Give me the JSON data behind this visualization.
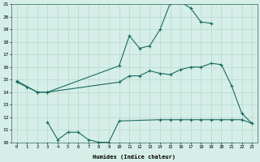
{
  "xlabel": "Humidex (Indice chaleur)",
  "xlim": [
    -0.5,
    23.5
  ],
  "ylim": [
    10,
    21
  ],
  "yticks": [
    10,
    11,
    12,
    13,
    14,
    15,
    16,
    17,
    18,
    19,
    20,
    21
  ],
  "xtick_labels": [
    "0",
    "1",
    "2",
    "3",
    "4",
    "5",
    "6",
    "7",
    "8",
    "9",
    "10",
    "11",
    "12",
    "13",
    "14",
    "15",
    "16",
    "17",
    "18",
    "19",
    "20",
    "21",
    "22",
    "23"
  ],
  "xticks": [
    0,
    1,
    2,
    3,
    4,
    5,
    6,
    7,
    8,
    9,
    10,
    11,
    12,
    13,
    14,
    15,
    16,
    17,
    18,
    19,
    20,
    21,
    22,
    23
  ],
  "bg_color": "#d5eee8",
  "grid_color": "#b8d8cc",
  "line_color": "#1a6b60",
  "line1_x": [
    0,
    1,
    2,
    3,
    10,
    11,
    12,
    13,
    14,
    15,
    16,
    17,
    18,
    19
  ],
  "line1_y": [
    14.8,
    14.4,
    14.0,
    14.0,
    16.1,
    18.5,
    17.5,
    17.7,
    19.0,
    21.1,
    21.2,
    20.7,
    19.6,
    19.5
  ],
  "line2_x": [
    0,
    2,
    3,
    10,
    11,
    12,
    13,
    14,
    15,
    16,
    17,
    18,
    19,
    20,
    21,
    22,
    23
  ],
  "line2_y": [
    14.9,
    14.0,
    14.0,
    14.8,
    15.3,
    15.3,
    15.7,
    15.5,
    15.4,
    15.8,
    16.0,
    16.0,
    16.3,
    16.2,
    14.5,
    12.3,
    11.5
  ],
  "line3_x": [
    3,
    4,
    5,
    6,
    7,
    8,
    9,
    10,
    14,
    15,
    16,
    17,
    18,
    19,
    20,
    21,
    22,
    23
  ],
  "line3_y": [
    11.6,
    10.2,
    10.8,
    10.8,
    10.2,
    10.0,
    10.0,
    11.7,
    11.8,
    11.8,
    11.8,
    11.8,
    11.8,
    11.8,
    11.8,
    11.8,
    11.8,
    11.5
  ]
}
